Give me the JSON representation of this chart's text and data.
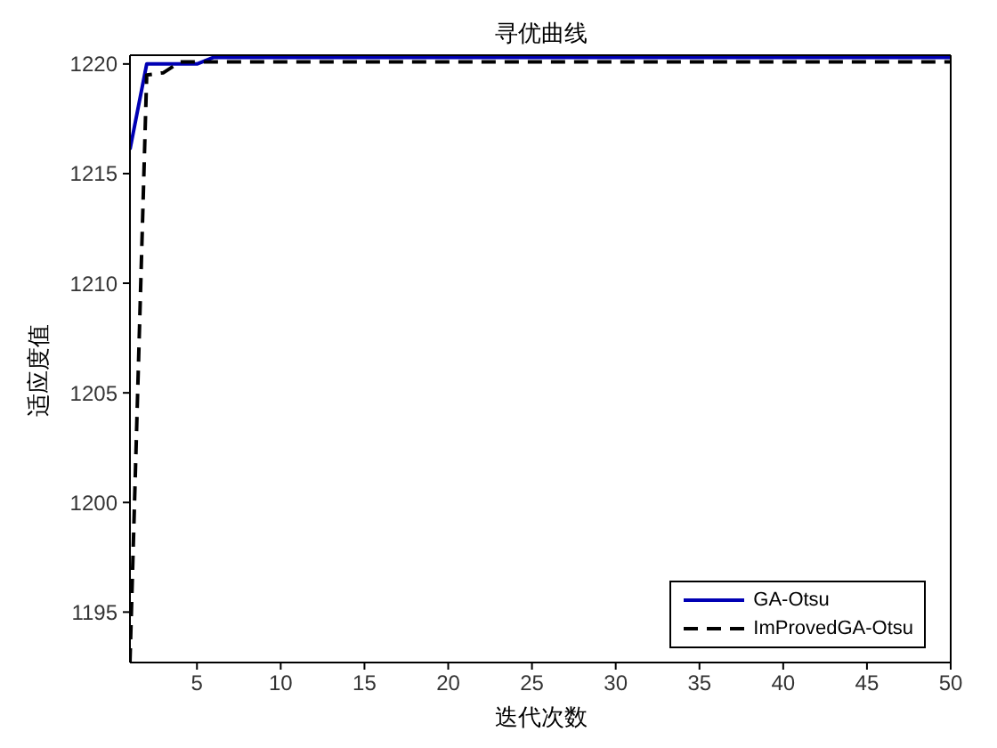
{
  "chart_data": {
    "type": "line",
    "title": "寻优曲线",
    "xlabel": "迭代次数",
    "ylabel": "适应度值",
    "x": [
      1,
      2,
      3,
      4,
      5,
      6,
      7,
      8,
      9,
      10,
      11,
      12,
      13,
      14,
      15,
      16,
      17,
      18,
      19,
      20,
      21,
      22,
      23,
      24,
      25,
      26,
      27,
      28,
      29,
      30,
      31,
      32,
      33,
      34,
      35,
      36,
      37,
      38,
      39,
      40,
      41,
      42,
      43,
      44,
      45,
      46,
      47,
      48,
      49,
      50
    ],
    "series": [
      {
        "name": "GA-Otsu",
        "color": "#0000b4",
        "line_style": "solid",
        "values": [
          1216.1,
          1220.0,
          1220.0,
          1220.0,
          1220.0,
          1220.3,
          1220.3,
          1220.3,
          1220.3,
          1220.3,
          1220.3,
          1220.3,
          1220.3,
          1220.3,
          1220.3,
          1220.3,
          1220.3,
          1220.3,
          1220.3,
          1220.3,
          1220.3,
          1220.3,
          1220.3,
          1220.3,
          1220.3,
          1220.3,
          1220.3,
          1220.3,
          1220.3,
          1220.3,
          1220.3,
          1220.3,
          1220.3,
          1220.3,
          1220.3,
          1220.3,
          1220.3,
          1220.3,
          1220.3,
          1220.3,
          1220.3,
          1220.3,
          1220.3,
          1220.3,
          1220.3,
          1220.3,
          1220.3,
          1220.3,
          1220.3,
          1220.3
        ]
      },
      {
        "name": "ImProvedGA-Otsu",
        "color": "#000000",
        "line_style": "dashed",
        "values": [
          1192.7,
          1219.5,
          1219.6,
          1220.1,
          1220.1,
          1220.1,
          1220.1,
          1220.1,
          1220.1,
          1220.1,
          1220.1,
          1220.1,
          1220.1,
          1220.1,
          1220.1,
          1220.1,
          1220.1,
          1220.1,
          1220.1,
          1220.1,
          1220.1,
          1220.1,
          1220.1,
          1220.1,
          1220.1,
          1220.1,
          1220.1,
          1220.1,
          1220.1,
          1220.1,
          1220.1,
          1220.1,
          1220.1,
          1220.1,
          1220.1,
          1220.1,
          1220.1,
          1220.1,
          1220.1,
          1220.1,
          1220.1,
          1220.1,
          1220.1,
          1220.1,
          1220.1,
          1220.1,
          1220.1,
          1220.1,
          1220.1,
          1220.1
        ]
      }
    ],
    "xlim": [
      1,
      50
    ],
    "xticks": [
      5,
      10,
      15,
      20,
      25,
      30,
      35,
      40,
      45,
      50
    ],
    "ylim": [
      1192.7,
      1220.4
    ],
    "yticks": [
      1195,
      1200,
      1205,
      1210,
      1215,
      1220
    ],
    "grid": false,
    "legend": "bottom right",
    "marker": "none"
  }
}
